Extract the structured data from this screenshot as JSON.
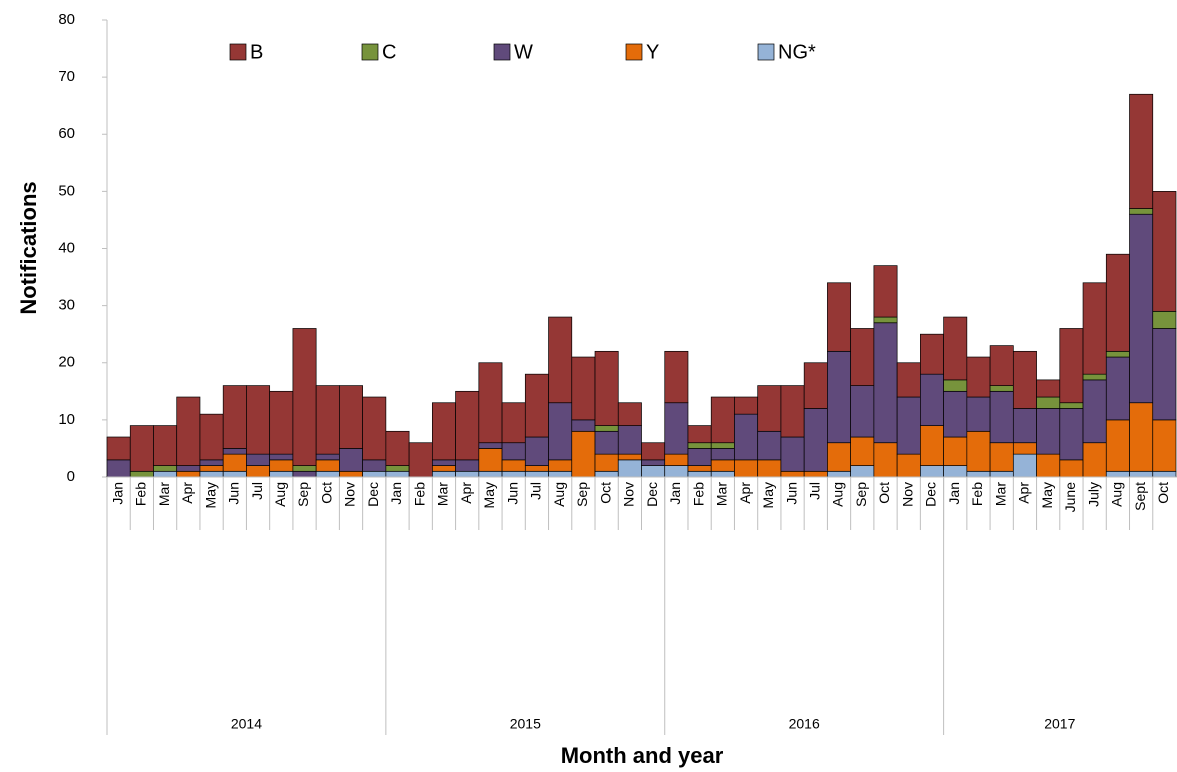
{
  "chart_data": {
    "type": "stacked_bar",
    "y_label": "Notifications",
    "x_label": "Month and year",
    "groups": [
      {
        "label": "2014",
        "categories": [
          "Jan",
          "Feb",
          "Mar",
          "Apr",
          "May",
          "Jun",
          "Jul",
          "Aug",
          "Sep",
          "Oct",
          "Nov",
          "Dec"
        ]
      },
      {
        "label": "2015",
        "categories": [
          "Jan",
          "Feb",
          "Mar",
          "Apr",
          "May",
          "Jun",
          "Jul",
          "Aug",
          "Sep",
          "Oct",
          "Nov",
          "Dec"
        ]
      },
      {
        "label": "2016",
        "categories": [
          "Jan",
          "Feb",
          "Mar",
          "Apr",
          "May",
          "Jun",
          "Jul",
          "Aug",
          "Sep",
          "Oct",
          "Nov",
          "Dec"
        ]
      },
      {
        "label": "2017",
        "categories": [
          "Jan",
          "Feb",
          "Mar",
          "Apr",
          "May",
          "June",
          "July",
          "Aug",
          "Sept",
          "Oct"
        ]
      }
    ],
    "series": [
      {
        "name": "B",
        "color": "#953735",
        "values": [
          4,
          8,
          7,
          12,
          8,
          11,
          12,
          11,
          24,
          12,
          11,
          11,
          6,
          6,
          10,
          12,
          14,
          7,
          11,
          15,
          11,
          13,
          4,
          3,
          9,
          3,
          8,
          3,
          8,
          9,
          8,
          12,
          10,
          9,
          6,
          7,
          11,
          7,
          7,
          10,
          3,
          13,
          16,
          17,
          20,
          21
        ]
      },
      {
        "name": "C",
        "color": "#77933c",
        "values": [
          0,
          1,
          1,
          0,
          0,
          0,
          0,
          0,
          1,
          0,
          0,
          0,
          1,
          0,
          0,
          0,
          0,
          0,
          0,
          0,
          0,
          1,
          0,
          0,
          0,
          1,
          1,
          0,
          0,
          0,
          0,
          0,
          0,
          1,
          0,
          0,
          2,
          0,
          1,
          0,
          2,
          1,
          1,
          1,
          1,
          3
        ]
      },
      {
        "name": "W",
        "color": "#604a7b",
        "values": [
          3,
          0,
          0,
          1,
          1,
          1,
          2,
          1,
          1,
          1,
          4,
          2,
          0,
          0,
          1,
          2,
          1,
          3,
          5,
          10,
          2,
          4,
          5,
          1,
          9,
          3,
          2,
          8,
          5,
          6,
          11,
          16,
          9,
          21,
          10,
          9,
          8,
          6,
          9,
          6,
          8,
          9,
          11,
          11,
          33,
          16
        ]
      },
      {
        "name": "Y",
        "color": "#e46c0a",
        "values": [
          0,
          0,
          0,
          1,
          1,
          3,
          2,
          2,
          0,
          2,
          1,
          0,
          0,
          0,
          1,
          0,
          4,
          2,
          1,
          2,
          8,
          3,
          1,
          0,
          2,
          1,
          2,
          3,
          3,
          1,
          1,
          5,
          5,
          6,
          4,
          7,
          5,
          7,
          5,
          2,
          4,
          3,
          6,
          9,
          12,
          9
        ]
      },
      {
        "name": "NG*",
        "color": "#95b3d7",
        "values": [
          0,
          0,
          1,
          0,
          1,
          1,
          0,
          1,
          0,
          1,
          0,
          1,
          1,
          0,
          1,
          1,
          1,
          1,
          1,
          1,
          0,
          1,
          3,
          2,
          2,
          1,
          1,
          0,
          0,
          0,
          0,
          1,
          2,
          0,
          0,
          2,
          2,
          1,
          1,
          4,
          0,
          0,
          0,
          1,
          1,
          1
        ]
      }
    ],
    "ylim": [
      0,
      80
    ],
    "yticks": [
      0,
      10,
      20,
      30,
      40,
      50,
      60,
      70,
      80
    ],
    "grid": false
  }
}
